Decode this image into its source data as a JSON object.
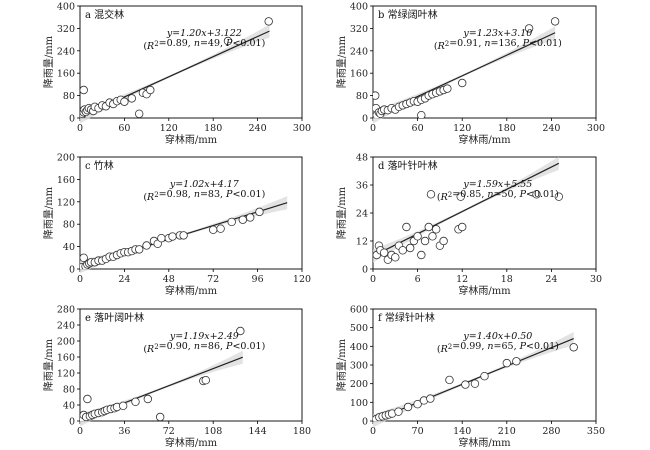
{
  "chart_data": [
    {
      "type": "scatter",
      "title": "a 混交林",
      "xlabel": "穿林雨/mm",
      "ylabel": "降雨量/mm",
      "xlim": [
        0,
        300
      ],
      "ylim": [
        0,
        400
      ],
      "xticks": [
        0,
        60,
        120,
        180,
        240,
        300
      ],
      "yticks": [
        0,
        80,
        160,
        240,
        320,
        400
      ],
      "equation": "y=1.20x+3.122",
      "stats": "(R²=0.89, n=49, P<0.01)",
      "fit": {
        "slope": 1.2,
        "intercept": 3.122,
        "x_range": [
          0,
          256
        ]
      },
      "points": [
        [
          2,
          8
        ],
        [
          3,
          15
        ],
        [
          4,
          25
        ],
        [
          5,
          20
        ],
        [
          6,
          30
        ],
        [
          8,
          22
        ],
        [
          10,
          28
        ],
        [
          12,
          35
        ],
        [
          15,
          30
        ],
        [
          18,
          25
        ],
        [
          20,
          40
        ],
        [
          25,
          35
        ],
        [
          30,
          45
        ],
        [
          35,
          42
        ],
        [
          40,
          55
        ],
        [
          45,
          50
        ],
        [
          50,
          60
        ],
        [
          55,
          65
        ],
        [
          60,
          58
        ],
        [
          70,
          70
        ],
        [
          80,
          15
        ],
        [
          85,
          90
        ],
        [
          90,
          85
        ],
        [
          95,
          100
        ],
        [
          5,
          100
        ],
        [
          200,
          275
        ],
        [
          255,
          345
        ]
      ]
    },
    {
      "type": "scatter",
      "title": "b 常绿阔叶林",
      "xlabel": "穿林雨/mm",
      "ylabel": "降雨量/mm",
      "xlim": [
        0,
        300
      ],
      "ylim": [
        0,
        400
      ],
      "xticks": [
        0,
        60,
        120,
        180,
        240,
        300
      ],
      "yticks": [
        0,
        80,
        160,
        240,
        320,
        400
      ],
      "equation": "y=1.23x+3.10",
      "stats": "(R²=0.91, n=136, P<0.01)",
      "fit": {
        "slope": 1.23,
        "intercept": 3.1,
        "x_range": [
          0,
          245
        ]
      },
      "points": [
        [
          2,
          5
        ],
        [
          3,
          80
        ],
        [
          4,
          35
        ],
        [
          5,
          10
        ],
        [
          8,
          20
        ],
        [
          10,
          15
        ],
        [
          12,
          25
        ],
        [
          15,
          30
        ],
        [
          20,
          28
        ],
        [
          25,
          35
        ],
        [
          30,
          30
        ],
        [
          35,
          40
        ],
        [
          40,
          45
        ],
        [
          45,
          50
        ],
        [
          50,
          55
        ],
        [
          55,
          60
        ],
        [
          60,
          58
        ],
        [
          65,
          65
        ],
        [
          70,
          70
        ],
        [
          75,
          80
        ],
        [
          80,
          85
        ],
        [
          85,
          90
        ],
        [
          90,
          95
        ],
        [
          95,
          100
        ],
        [
          100,
          105
        ],
        [
          65,
          10
        ],
        [
          120,
          125
        ],
        [
          210,
          320
        ],
        [
          245,
          345
        ]
      ]
    },
    {
      "type": "scatter",
      "title": "c 竹林",
      "xlabel": "穿林雨/mm",
      "ylabel": "降雨量/mm",
      "xlim": [
        0,
        120
      ],
      "ylim": [
        0,
        200
      ],
      "xticks": [
        0,
        24,
        48,
        72,
        96,
        120
      ],
      "yticks": [
        0,
        40,
        80,
        120,
        160,
        200
      ],
      "equation": "y=1.02x+4.17",
      "stats": "(R²=0.98, n=83, P<0.01)",
      "fit": {
        "slope": 1.02,
        "intercept": 4.17,
        "x_range": [
          0,
          112
        ]
      },
      "points": [
        [
          1,
          3
        ],
        [
          2,
          20
        ],
        [
          3,
          5
        ],
        [
          4,
          8
        ],
        [
          5,
          10
        ],
        [
          6,
          12
        ],
        [
          8,
          12
        ],
        [
          10,
          15
        ],
        [
          12,
          15
        ],
        [
          14,
          18
        ],
        [
          16,
          22
        ],
        [
          18,
          22
        ],
        [
          20,
          25
        ],
        [
          22,
          28
        ],
        [
          24,
          30
        ],
        [
          26,
          30
        ],
        [
          28,
          32
        ],
        [
          30,
          35
        ],
        [
          32,
          35
        ],
        [
          36,
          42
        ],
        [
          40,
          50
        ],
        [
          42,
          45
        ],
        [
          44,
          55
        ],
        [
          48,
          55
        ],
        [
          50,
          58
        ],
        [
          54,
          60
        ],
        [
          56,
          60
        ],
        [
          72,
          70
        ],
        [
          76,
          72
        ],
        [
          82,
          84
        ],
        [
          88,
          88
        ],
        [
          92,
          92
        ],
        [
          97,
          102
        ]
      ]
    },
    {
      "type": "scatter",
      "title": "d 落叶针叶林",
      "xlabel": "穿林雨/mm",
      "ylabel": "降雨量/mm",
      "xlim": [
        0,
        30
      ],
      "ylim": [
        0,
        48
      ],
      "xticks": [
        0,
        6,
        12,
        18,
        24,
        30
      ],
      "yticks": [
        0,
        12,
        24,
        36,
        48
      ],
      "equation": "y=1.59x+5.55",
      "stats": "(R²=0.85, n=50, P<0.01)",
      "fit": {
        "slope": 1.59,
        "intercept": 5.55,
        "x_range": [
          0,
          25
        ]
      },
      "points": [
        [
          0.5,
          6
        ],
        [
          0.8,
          10
        ],
        [
          1,
          8
        ],
        [
          1.5,
          7
        ],
        [
          2,
          4
        ],
        [
          2.5,
          6
        ],
        [
          3,
          5
        ],
        [
          3.5,
          10
        ],
        [
          4,
          8
        ],
        [
          4.5,
          18
        ],
        [
          5,
          9
        ],
        [
          5.5,
          12
        ],
        [
          6,
          14
        ],
        [
          6.5,
          6
        ],
        [
          7,
          12
        ],
        [
          7.5,
          18
        ],
        [
          7.8,
          32
        ],
        [
          8,
          14
        ],
        [
          8.5,
          17
        ],
        [
          9,
          10
        ],
        [
          9.5,
          12
        ],
        [
          11.5,
          17
        ],
        [
          11.8,
          31
        ],
        [
          12,
          18
        ],
        [
          22,
          32
        ],
        [
          25,
          31
        ]
      ]
    },
    {
      "type": "scatter",
      "title": "e 落叶阔叶林",
      "xlabel": "穿林雨/mm",
      "ylabel": "降雨量/mm",
      "xlim": [
        0,
        180
      ],
      "ylim": [
        0,
        280
      ],
      "xticks": [
        0,
        36,
        72,
        108,
        144,
        180
      ],
      "yticks": [
        0,
        40,
        80,
        120,
        160,
        200,
        240,
        280
      ],
      "equation": "y=1.19x+2.49",
      "stats": "(R²=0.90, n=86, P<0.01)",
      "fit": {
        "slope": 1.19,
        "intercept": 2.49,
        "x_range": [
          0,
          132
        ]
      },
      "points": [
        [
          2,
          5
        ],
        [
          3,
          15
        ],
        [
          5,
          10
        ],
        [
          6,
          55
        ],
        [
          8,
          12
        ],
        [
          10,
          15
        ],
        [
          12,
          18
        ],
        [
          15,
          20
        ],
        [
          18,
          22
        ],
        [
          20,
          25
        ],
        [
          22,
          28
        ],
        [
          25,
          30
        ],
        [
          28,
          32
        ],
        [
          30,
          35
        ],
        [
          35,
          38
        ],
        [
          45,
          48
        ],
        [
          55,
          55
        ],
        [
          65,
          10
        ],
        [
          100,
          100
        ],
        [
          102,
          102
        ],
        [
          130,
          225
        ]
      ]
    },
    {
      "type": "scatter",
      "title": "f 常绿针叶林",
      "xlabel": "穿林雨/mm",
      "ylabel": "降雨量/mm",
      "xlim": [
        0,
        350
      ],
      "ylim": [
        0,
        600
      ],
      "xticks": [
        0,
        70,
        140,
        210,
        280,
        350
      ],
      "yticks": [
        0,
        100,
        200,
        300,
        400,
        500,
        600
      ],
      "equation": "y=1.40x+0.50",
      "stats": "(R²=0.99, n=65, P<0.01)",
      "fit": {
        "slope": 1.4,
        "intercept": 0.5,
        "x_range": [
          0,
          315
        ]
      },
      "points": [
        [
          5,
          10
        ],
        [
          10,
          20
        ],
        [
          15,
          25
        ],
        [
          20,
          30
        ],
        [
          25,
          35
        ],
        [
          30,
          40
        ],
        [
          40,
          50
        ],
        [
          55,
          75
        ],
        [
          70,
          90
        ],
        [
          80,
          110
        ],
        [
          90,
          120
        ],
        [
          120,
          220
        ],
        [
          145,
          195
        ],
        [
          160,
          200
        ],
        [
          175,
          240
        ],
        [
          210,
          310
        ],
        [
          225,
          320
        ],
        [
          315,
          395
        ]
      ]
    }
  ]
}
